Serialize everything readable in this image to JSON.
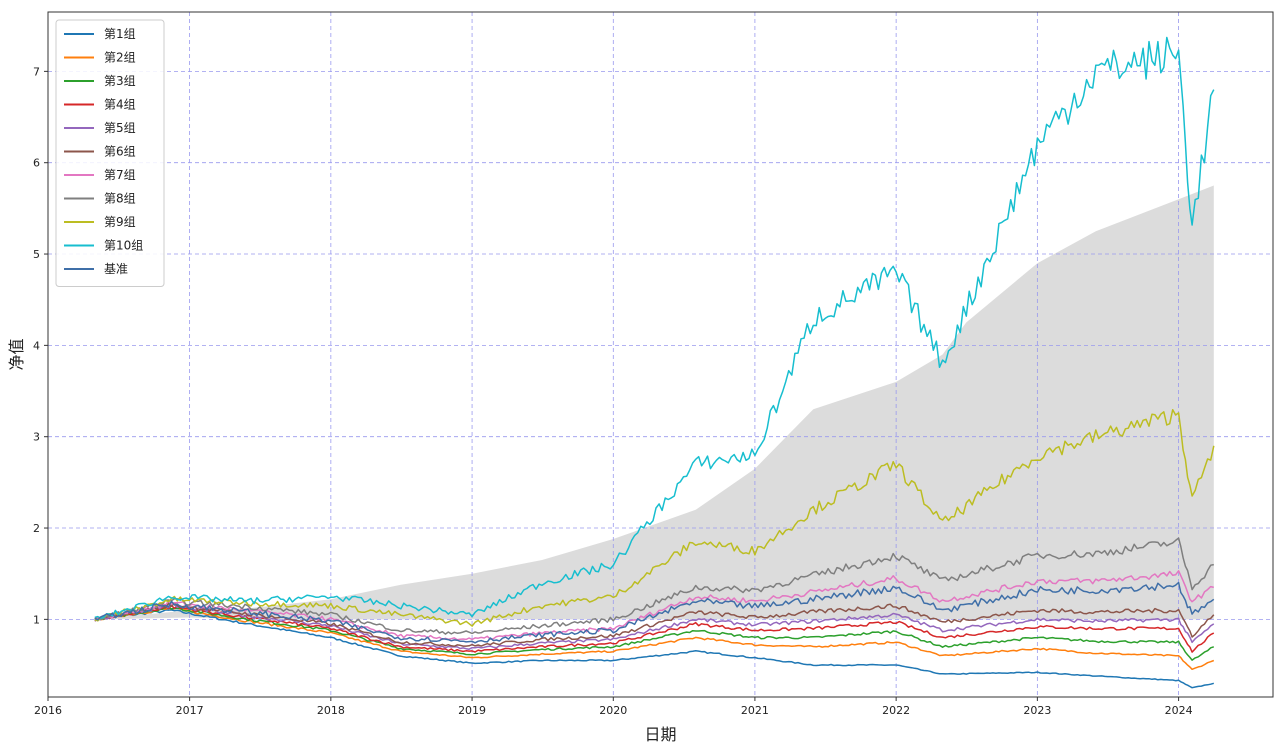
{
  "chart_data": {
    "type": "line",
    "title": "",
    "xlabel": "日期",
    "ylabel": "净值",
    "x_axis": "date",
    "xlim": [
      "2016-01-01",
      "2024-09-01"
    ],
    "ylim": [
      0.15,
      7.65
    ],
    "xticks": [
      "2016",
      "2017",
      "2018",
      "2019",
      "2020",
      "2021",
      "2022",
      "2023",
      "2024"
    ],
    "yticks": [
      1,
      2,
      3,
      4,
      5,
      6,
      7
    ],
    "grid": true,
    "legend_position": "top-left",
    "series": [
      {
        "name": "第1组",
        "color": "#1f77b4",
        "x": [
          "2016-05-01",
          "2016-11-15",
          "2017-06-01",
          "2018-01-01",
          "2018-07-01",
          "2019-01-01",
          "2019-07-01",
          "2020-01-01",
          "2020-08-01",
          "2021-01-01",
          "2021-06-01",
          "2022-01-01",
          "2022-05-01",
          "2023-01-01",
          "2023-06-01",
          "2024-01-01",
          "2024-02-05",
          "2024-04-01"
        ],
        "y": [
          1.0,
          1.1,
          0.95,
          0.8,
          0.6,
          0.52,
          0.55,
          0.55,
          0.65,
          0.58,
          0.5,
          0.5,
          0.4,
          0.42,
          0.38,
          0.33,
          0.25,
          0.3
        ]
      },
      {
        "name": "第2组",
        "color": "#ff7f0e",
        "x": [
          "2016-05-01",
          "2016-11-15",
          "2017-06-01",
          "2018-01-01",
          "2018-07-01",
          "2019-01-01",
          "2019-07-01",
          "2020-01-01",
          "2020-08-01",
          "2021-01-01",
          "2021-06-01",
          "2022-01-01",
          "2022-05-01",
          "2023-01-01",
          "2023-06-01",
          "2024-01-01",
          "2024-02-05",
          "2024-04-01"
        ],
        "y": [
          1.0,
          1.12,
          0.98,
          0.85,
          0.65,
          0.58,
          0.62,
          0.65,
          0.8,
          0.72,
          0.7,
          0.75,
          0.6,
          0.68,
          0.63,
          0.6,
          0.45,
          0.55
        ]
      },
      {
        "name": "第3组",
        "color": "#2ca02c",
        "x": [
          "2016-05-01",
          "2016-11-15",
          "2017-06-01",
          "2018-01-01",
          "2018-07-01",
          "2019-01-01",
          "2019-07-01",
          "2020-01-01",
          "2020-08-01",
          "2021-01-01",
          "2021-06-01",
          "2022-01-01",
          "2022-05-01",
          "2023-01-01",
          "2023-06-01",
          "2024-01-01",
          "2024-02-05",
          "2024-04-01"
        ],
        "y": [
          1.0,
          1.13,
          1.0,
          0.88,
          0.68,
          0.62,
          0.67,
          0.7,
          0.88,
          0.8,
          0.8,
          0.87,
          0.7,
          0.8,
          0.76,
          0.75,
          0.55,
          0.7
        ]
      },
      {
        "name": "第4组",
        "color": "#d62728",
        "x": [
          "2016-05-01",
          "2016-11-15",
          "2017-06-01",
          "2018-01-01",
          "2018-07-01",
          "2019-01-01",
          "2019-07-01",
          "2020-01-01",
          "2020-08-01",
          "2021-01-01",
          "2021-06-01",
          "2022-01-01",
          "2022-05-01",
          "2023-01-01",
          "2023-06-01",
          "2024-01-01",
          "2024-02-05",
          "2024-04-01"
        ],
        "y": [
          1.0,
          1.14,
          1.02,
          0.9,
          0.7,
          0.65,
          0.7,
          0.74,
          0.95,
          0.88,
          0.9,
          0.97,
          0.8,
          0.92,
          0.9,
          0.9,
          0.65,
          0.85
        ]
      },
      {
        "name": "第5组",
        "color": "#9467bd",
        "x": [
          "2016-05-01",
          "2016-11-15",
          "2017-06-01",
          "2018-01-01",
          "2018-07-01",
          "2019-01-01",
          "2019-07-01",
          "2020-01-01",
          "2020-08-01",
          "2021-01-01",
          "2021-06-01",
          "2022-01-01",
          "2022-05-01",
          "2023-01-01",
          "2023-06-01",
          "2024-01-01",
          "2024-02-05",
          "2024-04-01"
        ],
        "y": [
          1.0,
          1.15,
          1.04,
          0.93,
          0.73,
          0.68,
          0.74,
          0.78,
          1.0,
          0.94,
          0.98,
          1.05,
          0.88,
          1.0,
          0.98,
          1.0,
          0.75,
          0.95
        ]
      },
      {
        "name": "第6组",
        "color": "#8c564b",
        "x": [
          "2016-05-01",
          "2016-11-15",
          "2017-06-01",
          "2018-01-01",
          "2018-07-01",
          "2019-01-01",
          "2019-07-01",
          "2020-01-01",
          "2020-08-01",
          "2021-01-01",
          "2021-06-01",
          "2022-01-01",
          "2022-05-01",
          "2023-01-01",
          "2023-06-01",
          "2024-01-01",
          "2024-02-05",
          "2024-04-01"
        ],
        "y": [
          1.0,
          1.16,
          1.06,
          0.95,
          0.75,
          0.71,
          0.78,
          0.82,
          1.08,
          1.02,
          1.08,
          1.15,
          0.97,
          1.1,
          1.08,
          1.1,
          0.82,
          1.05
        ]
      },
      {
        "name": "第7组",
        "color": "#e377c2",
        "x": [
          "2016-05-01",
          "2016-11-15",
          "2017-06-01",
          "2018-01-01",
          "2018-07-01",
          "2019-01-01",
          "2019-07-01",
          "2020-01-01",
          "2020-08-01",
          "2021-01-01",
          "2021-06-01",
          "2022-01-01",
          "2022-05-01",
          "2023-01-01",
          "2023-06-01",
          "2024-01-01",
          "2024-02-05",
          "2024-04-01"
        ],
        "y": [
          1.0,
          1.18,
          1.1,
          1.0,
          0.82,
          0.78,
          0.85,
          0.9,
          1.25,
          1.2,
          1.3,
          1.45,
          1.2,
          1.42,
          1.42,
          1.5,
          1.2,
          1.35
        ]
      },
      {
        "name": "第8组",
        "color": "#7f7f7f",
        "x": [
          "2016-05-01",
          "2016-11-15",
          "2017-06-01",
          "2018-01-01",
          "2018-07-01",
          "2019-01-01",
          "2019-07-01",
          "2020-01-01",
          "2020-08-01",
          "2021-01-01",
          "2021-06-01",
          "2022-01-01",
          "2022-05-01",
          "2023-01-01",
          "2023-06-01",
          "2024-01-01",
          "2024-02-05",
          "2024-04-01"
        ],
        "y": [
          1.0,
          1.2,
          1.14,
          1.05,
          0.88,
          0.85,
          0.93,
          1.0,
          1.35,
          1.32,
          1.48,
          1.7,
          1.42,
          1.7,
          1.72,
          1.85,
          1.35,
          1.6
        ]
      },
      {
        "name": "第9组",
        "color": "#bcbd22",
        "x": [
          "2016-05-01",
          "2016-11-15",
          "2017-06-01",
          "2018-01-01",
          "2018-07-01",
          "2019-01-01",
          "2019-07-01",
          "2020-01-01",
          "2020-08-01",
          "2021-01-01",
          "2021-06-01",
          "2022-01-01",
          "2022-05-01",
          "2023-01-01",
          "2023-06-01",
          "2024-01-01",
          "2024-02-05",
          "2024-04-01"
        ],
        "y": [
          1.0,
          1.22,
          1.18,
          1.15,
          1.05,
          0.95,
          1.15,
          1.25,
          1.85,
          1.75,
          2.2,
          2.7,
          2.05,
          2.8,
          3.0,
          3.25,
          2.3,
          2.9
        ]
      },
      {
        "name": "第10组",
        "color": "#17becf",
        "x": [
          "2016-05-01",
          "2016-11-15",
          "2017-06-01",
          "2018-01-01",
          "2018-07-01",
          "2019-01-01",
          "2019-07-01",
          "2020-01-01",
          "2020-08-01",
          "2021-01-01",
          "2021-06-01",
          "2022-01-01",
          "2022-05-01",
          "2023-01-01",
          "2023-06-01",
          "2024-01-01",
          "2024-02-05",
          "2024-04-01"
        ],
        "y": [
          1.0,
          1.25,
          1.2,
          1.25,
          1.15,
          1.05,
          1.4,
          1.6,
          2.7,
          2.8,
          4.3,
          4.8,
          3.8,
          6.2,
          7.0,
          7.2,
          5.3,
          6.8
        ]
      },
      {
        "name": "基准",
        "color": "#3f6fa8",
        "x": [
          "2016-05-01",
          "2016-11-15",
          "2017-06-01",
          "2018-01-01",
          "2018-07-01",
          "2019-01-01",
          "2019-07-01",
          "2020-01-01",
          "2020-08-01",
          "2021-01-01",
          "2021-06-01",
          "2022-01-01",
          "2022-05-01",
          "2023-01-01",
          "2023-06-01",
          "2024-01-01",
          "2024-02-05",
          "2024-04-01"
        ],
        "y": [
          1.0,
          1.17,
          1.08,
          0.98,
          0.8,
          0.76,
          0.83,
          0.88,
          1.2,
          1.14,
          1.22,
          1.35,
          1.1,
          1.32,
          1.32,
          1.38,
          1.05,
          1.22
        ]
      }
    ],
    "fill_area": {
      "color": "#dcdcdc",
      "x": [
        "2016-05-01",
        "2017-01-01",
        "2017-06-01",
        "2018-01-01",
        "2018-07-01",
        "2019-01-01",
        "2019-07-01",
        "2020-01-01",
        "2020-08-01",
        "2021-01-01",
        "2021-06-01",
        "2022-01-01",
        "2022-05-01",
        "2022-07-01",
        "2023-01-01",
        "2023-06-01",
        "2024-01-01",
        "2024-04-01"
      ],
      "lower": [
        1.0,
        1.02,
        1.0,
        1.0,
        1.0,
        1.0,
        1.0,
        1.0,
        1.0,
        1.0,
        1.0,
        1.0,
        1.0,
        1.0,
        1.0,
        1.0,
        1.0,
        1.0
      ],
      "upper": [
        1.0,
        1.1,
        1.12,
        1.22,
        1.38,
        1.5,
        1.65,
        1.88,
        2.2,
        2.65,
        3.3,
        3.6,
        3.9,
        4.25,
        4.9,
        5.25,
        5.6,
        5.75
      ]
    }
  }
}
